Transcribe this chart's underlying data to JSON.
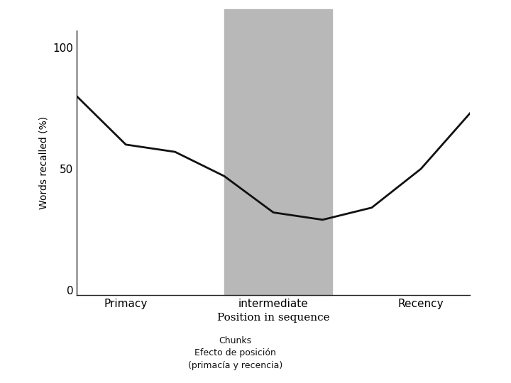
{
  "x_values": [
    0,
    1,
    2,
    3,
    4,
    5,
    6,
    7,
    8
  ],
  "y_values": [
    80,
    60,
    57,
    47,
    32,
    29,
    34,
    50,
    73
  ],
  "ylim": [
    -2,
    107
  ],
  "yticks": [
    0,
    50,
    100
  ],
  "xlim": [
    0,
    8
  ],
  "xtick_positions": [
    1,
    4,
    7
  ],
  "xtick_labels": [
    "Primacy",
    "intermediate",
    "Recency"
  ],
  "xlabel": "Position in sequence",
  "ylabel": "Words recalled (%)",
  "shade_xmin": 3.0,
  "shade_xmax": 5.2,
  "shade_color": "#b8b8b8",
  "shade_alpha": 1.0,
  "line_color": "#111111",
  "line_width": 2.0,
  "bg_color": "#ffffff",
  "caption_line1": "Chunks",
  "caption_line2": "Efecto de posición",
  "caption_line3": "(primacía y recencia)",
  "caption_fontsize": 9,
  "xlabel_fontsize": 11,
  "ylabel_fontsize": 10,
  "tick_fontsize": 11
}
